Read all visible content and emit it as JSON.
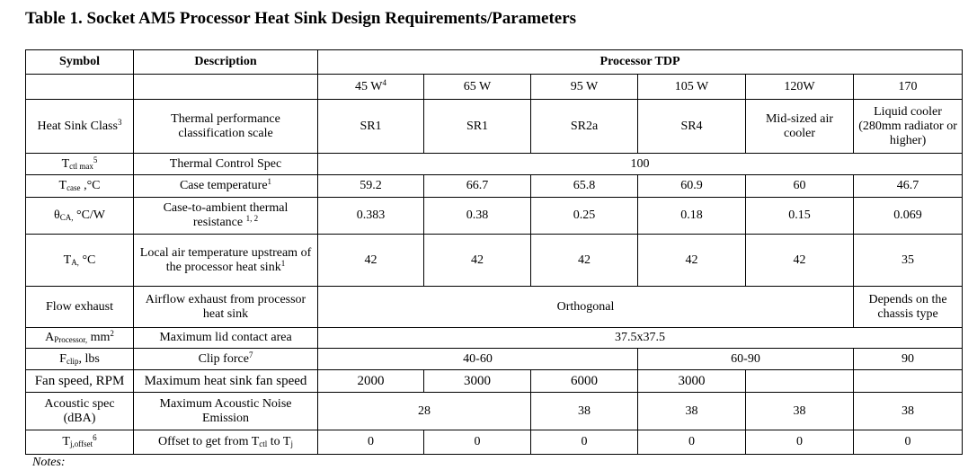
{
  "title": "Table 1. Socket AM5 Processor Heat Sink Design Requirements/Parameters",
  "headers": {
    "symbol": "Symbol",
    "description": "Description",
    "group": "Processor TDP"
  },
  "tdp": [
    {
      "label": "45 W",
      "sup": "4"
    },
    {
      "label": "65 W",
      "sup": ""
    },
    {
      "label": "95 W",
      "sup": ""
    },
    {
      "label": "105 W",
      "sup": ""
    },
    {
      "label": "120W",
      "sup": ""
    },
    {
      "label": "170",
      "sup": ""
    }
  ],
  "rows": {
    "heat_sink_class": {
      "sym": "Heat Sink Class",
      "sup": "3",
      "desc": "Thermal performance classification scale",
      "values": [
        "SR1",
        "SR1",
        "SR2a",
        "SR4",
        "Mid-sized air cooler",
        "Liquid cooler (280mm radiator or higher)"
      ]
    },
    "tctl": {
      "sym": "T",
      "sub": "ctl max",
      "sup": "5",
      "desc": "Thermal Control Spec",
      "value": "100"
    },
    "tcase": {
      "sym": "T",
      "sub": "case",
      "suffix": " ,°C",
      "desc": "Case temperature",
      "desc_sup": "1",
      "values": [
        "59.2",
        "66.7",
        "65.8",
        "60.9",
        "60",
        "46.7"
      ]
    },
    "theta": {
      "sym": "θ",
      "sub": "CA,",
      "suffix": " °C/W",
      "desc": "Case-to-ambient thermal resistance",
      "desc_sup": "1, 2",
      "values": [
        "0.383",
        "0.38",
        "0.25",
        "0.18",
        "0.15",
        "0.069"
      ]
    },
    "ta": {
      "sym": "T",
      "sub": "A,",
      "suffix": " °C",
      "desc": "Local air temperature upstream of the processor heat sink",
      "desc_sup": "1",
      "values": [
        "42",
        "42",
        "42",
        "42",
        "42",
        "35"
      ]
    },
    "flow": {
      "sym": "Flow exhaust",
      "desc": "Airflow exhaust from processor heat sink",
      "value": "Orthogonal",
      "last": "Depends on the chassis type"
    },
    "area": {
      "sym": "A",
      "sub": "Processor,",
      "suffix": " mm",
      "sup": "2",
      "desc": "Maximum lid contact area",
      "value": "37.5x37.5"
    },
    "clip": {
      "sym": "F",
      "sub": "clip",
      "suffix": ", lbs",
      "desc": "Clip force",
      "desc_sup": "7",
      "values": [
        "40-60",
        "60-90",
        "90"
      ]
    },
    "fan": {
      "sym": "Fan speed, RPM",
      "desc": "Maximum heat sink fan speed",
      "values": [
        "2000",
        "3000",
        "6000",
        "3000",
        "",
        ""
      ]
    },
    "acoustic": {
      "sym": "Acoustic spec (dBA)",
      "desc": "Maximum Acoustic Noise Emission",
      "values": [
        "28",
        "38",
        "38",
        "38",
        "38"
      ]
    },
    "tj": {
      "sym": "T",
      "sub": "j,offset",
      "sup": "6",
      "desc_a": "Offset to get from T",
      "desc_sub": "ctl",
      "desc_b": " to T",
      "desc_sub2": "j",
      "values": [
        "0",
        "0",
        "0",
        "0",
        "0",
        "0"
      ]
    }
  },
  "notes": "Notes:"
}
